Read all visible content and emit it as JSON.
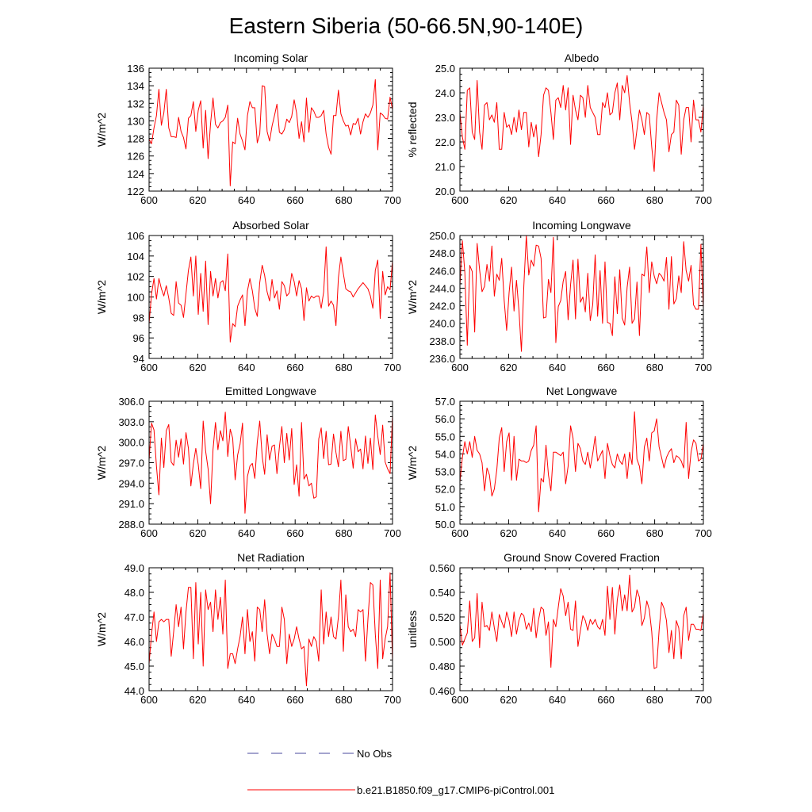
{
  "figure": {
    "title": "Eastern Siberia (50-66.5N,90-140E)",
    "legend": [
      {
        "label": "No Obs",
        "color": "#4a4a9c",
        "dash": true
      },
      {
        "label": "b.e21.B1850.f09_g17.CMIP6-piControl.001",
        "color": "#ff0000",
        "dash": false
      }
    ]
  },
  "colors": {
    "series": "#ff0000",
    "no_obs": "#4a4a9c",
    "axis": "#000000"
  },
  "chart_data": [
    {
      "type": "line",
      "title": "Incoming Solar",
      "ylabel": "W/m^2",
      "xlim": [
        600,
        700
      ],
      "ylim": [
        122,
        136
      ],
      "xticks": [
        "600",
        "620",
        "640",
        "660",
        "680",
        "700"
      ],
      "yticks": [
        "122",
        "124",
        "126",
        "128",
        "130",
        "132",
        "134",
        "136"
      ],
      "series": [
        {
          "values": [
            127.9,
            127.4,
            129.2,
            130.6,
            133.6,
            129.5,
            130.9,
            133.6,
            129.2,
            128.2,
            128.2,
            128.1,
            130.4,
            128.8,
            128.1,
            126.8,
            130.3,
            130.6,
            132.2,
            128.8,
            131.2,
            132.3,
            126.9,
            131.2,
            125.7,
            129.7,
            132.6,
            129.6,
            129.2,
            129.8,
            130.0,
            130.4,
            131.8,
            122.6,
            127.6,
            127.4,
            130.3,
            128.5,
            127.7,
            126.7,
            130.6,
            132.2,
            131.5,
            131.5,
            127.5,
            128.5,
            134.0,
            133.9,
            128.8,
            127.7,
            129.4,
            130.6,
            131.9,
            128.7,
            128.5,
            129.0,
            130.2,
            129.8,
            130.5,
            132.4,
            130.9,
            128.0,
            129.9,
            127.6,
            132.6,
            128.7,
            131.5,
            131.1,
            130.4,
            130.4,
            130.6,
            131.2,
            128.5,
            127.0,
            126.2,
            130.6,
            130.6,
            133.5,
            130.8,
            130.0,
            129.4,
            129.5,
            128.4,
            129.7,
            129.6,
            130.3,
            128.5,
            129.9,
            130.8,
            130.4,
            130.9,
            131.8,
            134.7,
            126.7,
            130.9,
            130.7,
            130.3,
            130.2,
            132.7,
            131.3
          ]
        }
      ]
    },
    {
      "type": "line",
      "title": "Albedo",
      "ylabel": "% reflected",
      "xlim": [
        600,
        700
      ],
      "ylim": [
        20,
        25
      ],
      "xticks": [
        "600",
        "620",
        "640",
        "660",
        "680",
        "700"
      ],
      "yticks": [
        "20.0",
        "21.0",
        "22.0",
        "23.0",
        "24.0",
        "25.0"
      ],
      "series": [
        {
          "values": [
            23.2,
            22.2,
            21.7,
            24.1,
            24.2,
            22.4,
            22.1,
            24.5,
            22.4,
            21.7,
            23.5,
            23.6,
            22.9,
            23.1,
            22.8,
            23.6,
            21.7,
            21.7,
            23.2,
            22.6,
            22.7,
            22.3,
            23.0,
            22.4,
            23.3,
            22.5,
            23.2,
            23.2,
            21.8,
            22.8,
            22.2,
            22.7,
            21.4,
            22.3,
            23.9,
            24.2,
            24.1,
            23.2,
            22.1,
            23.7,
            23.8,
            23.4,
            24.3,
            23.3,
            24.2,
            21.9,
            23.9,
            23.3,
            22.9,
            23.9,
            23.8,
            23.0,
            24.3,
            23.4,
            23.2,
            23.0,
            22.3,
            22.3,
            23.6,
            23.4,
            24.0,
            23.1,
            23.2,
            24.0,
            24.4,
            22.9,
            24.3,
            24.0,
            24.7,
            23.6,
            22.8,
            21.7,
            22.5,
            23.3,
            22.9,
            22.3,
            23.2,
            23.1,
            21.8,
            20.8,
            22.9,
            24.0,
            23.6,
            23.2,
            22.9,
            21.6,
            22.3,
            22.4,
            23.7,
            23.5,
            21.5,
            22.9,
            23.4,
            23.4,
            22.0,
            23.7,
            22.9,
            22.9,
            22.4,
            23.5
          ]
        }
      ]
    },
    {
      "type": "line",
      "title": "Absorbed Solar",
      "ylabel": "W/m^2",
      "xlim": [
        600,
        700
      ],
      "ylim": [
        94,
        106
      ],
      "xticks": [
        "600",
        "620",
        "640",
        "660",
        "680",
        "700"
      ],
      "yticks": [
        "94",
        "96",
        "98",
        "100",
        "102",
        "104",
        "106"
      ],
      "series": [
        {
          "values": [
            97.4,
            100.3,
            101.8,
            99.8,
            101.8,
            100.8,
            100.1,
            101.1,
            99.9,
            98.4,
            98.2,
            101.5,
            99.4,
            99.2,
            98.0,
            100.3,
            102.6,
            103.9,
            100.1,
            104.0,
            98.3,
            102.3,
            98.6,
            103.5,
            97.3,
            102.5,
            100.1,
            101.8,
            99.9,
            101.4,
            101.6,
            100.6,
            104.2,
            95.6,
            97.4,
            97.1,
            99.1,
            99.7,
            100.2,
            97.2,
            100.6,
            101.8,
            100.6,
            98.9,
            98.1,
            101.4,
            103.1,
            102.1,
            100.5,
            99.6,
            101.7,
            99.9,
            100.6,
            98.8,
            101.5,
            101.1,
            100.1,
            100.4,
            102.3,
            101.5,
            100.1,
            101.6,
            100.8,
            97.7,
            100.9,
            99.6,
            100.1,
            99.9,
            100.1,
            100.1,
            98.9,
            100.5,
            104.9,
            99.1,
            99.6,
            99.2,
            97.2,
            101.9,
            103.9,
            102.3,
            100.8,
            100.6,
            100.5,
            100.0,
            100.4,
            100.8,
            101.1,
            101.4,
            101.1,
            100.8,
            100.1,
            98.9,
            102.6,
            103.6,
            97.9,
            102.5,
            100.2,
            101.0,
            100.7,
            103.5
          ]
        }
      ]
    },
    {
      "type": "line",
      "title": "Incoming Longwave",
      "ylabel": "W/m^2",
      "xlim": [
        600,
        700
      ],
      "ylim": [
        236,
        250
      ],
      "xticks": [
        "600",
        "620",
        "640",
        "660",
        "680",
        "700"
      ],
      "yticks": [
        "236.0",
        "238.0",
        "240.0",
        "242.0",
        "244.0",
        "246.0",
        "248.0",
        "250.0"
      ],
      "series": [
        {
          "values": [
            244.3,
            249.4,
            245.8,
            237.5,
            246.6,
            245.9,
            239.0,
            249.1,
            246.1,
            243.6,
            244.2,
            246.7,
            244.8,
            248.8,
            243.1,
            245.6,
            244.9,
            247.4,
            242.6,
            239.2,
            243.5,
            246.4,
            241.4,
            244.9,
            241.5,
            236.8,
            244.3,
            250.0,
            245.5,
            247.2,
            246.5,
            248.9,
            248.8,
            247.4,
            240.6,
            240.7,
            245.0,
            243.5,
            249.8,
            237.8,
            241.9,
            242.6,
            244.8,
            245.9,
            240.4,
            244.4,
            247.2,
            240.5,
            247.3,
            242.4,
            243.0,
            241.3,
            245.7,
            240.3,
            242.1,
            247.8,
            240.8,
            246.0,
            240.0,
            247.0,
            240.1,
            240.0,
            238.6,
            245.3,
            241.1,
            246.1,
            240.6,
            239.8,
            244.1,
            246.4,
            240.0,
            240.5,
            244.7,
            238.6,
            245.6,
            245.4,
            248.7,
            243.5,
            247.0,
            245.4,
            244.5,
            245.7,
            245.4,
            244.8,
            247.5,
            241.6,
            247.6,
            242.2,
            242.8,
            245.4,
            243.5,
            249.3,
            246.0,
            244.8,
            246.6,
            242.1,
            241.6,
            241.6,
            249.0,
            241.7
          ]
        }
      ]
    },
    {
      "type": "line",
      "title": "Emitted Longwave",
      "ylabel": "W/m^2",
      "xlim": [
        600,
        700
      ],
      "ylim": [
        288,
        306
      ],
      "xticks": [
        "600",
        "620",
        "640",
        "660",
        "680",
        "700"
      ],
      "yticks": [
        "288.0",
        "291.0",
        "294.0",
        "297.0",
        "300.0",
        "303.0",
        "306.0"
      ],
      "series": [
        {
          "values": [
            297.4,
            302.8,
            301.8,
            296.5,
            292.3,
            300.6,
            296.3,
            301.7,
            302.6,
            297.1,
            296.6,
            300.3,
            297.8,
            300.5,
            296.8,
            301.4,
            299.1,
            293.6,
            296.8,
            299.1,
            296.7,
            293.2,
            303.1,
            298.7,
            296.1,
            291.0,
            298.9,
            302.9,
            298.9,
            301.7,
            300.2,
            304.4,
            297.9,
            301.9,
            300.6,
            294.5,
            298.1,
            299.7,
            302.8,
            289.6,
            295.0,
            296.5,
            296.9,
            294.7,
            300.0,
            303.1,
            297.9,
            295.3,
            301.1,
            297.4,
            299.4,
            299.6,
            295.4,
            299.3,
            302.3,
            297.0,
            301.3,
            297.4,
            302.0,
            293.8,
            296.7,
            292.1,
            302.9,
            294.6,
            295.3,
            293.6,
            294.0,
            291.8,
            292.0,
            300.5,
            302.1,
            297.6,
            301.6,
            296.7,
            296.8,
            301.2,
            298.5,
            296.4,
            301.6,
            297.3,
            297.5,
            302.3,
            299.4,
            296.2,
            300.5,
            298.6,
            299.0,
            296.1,
            300.9,
            296.9,
            300.6,
            296.0,
            304.0,
            300.9,
            298.2,
            302.5,
            297.1,
            296.1,
            295.4,
            303.9
          ]
        }
      ]
    },
    {
      "type": "line",
      "title": "Net Longwave",
      "ylabel": "W/m^2",
      "xlim": [
        600,
        700
      ],
      "ylim": [
        50,
        57
      ],
      "xticks": [
        "600",
        "620",
        "640",
        "660",
        "680",
        "700"
      ],
      "yticks": [
        "50.0",
        "51.0",
        "52.0",
        "53.0",
        "54.0",
        "55.0",
        "56.0",
        "57.0"
      ],
      "series": [
        {
          "values": [
            52.4,
            53.8,
            54.7,
            54.0,
            54.7,
            53.8,
            55.0,
            54.2,
            54.0,
            53.5,
            51.9,
            53.2,
            52.8,
            51.6,
            52.0,
            53.1,
            54.9,
            55.5,
            53.0,
            54.7,
            55.2,
            52.5,
            55.0,
            52.5,
            53.7,
            53.6,
            53.6,
            53.5,
            53.6,
            54.2,
            54.5,
            55.6,
            50.7,
            52.6,
            52.4,
            54.5,
            52.8,
            51.9,
            54.1,
            54.1,
            54.0,
            53.9,
            54.1,
            52.3,
            53.3,
            55.6,
            54.9,
            53.0,
            54.6,
            54.3,
            53.6,
            53.4,
            54.1,
            53.2,
            54.0,
            55.0,
            53.6,
            53.9,
            54.2,
            52.6,
            54.6,
            53.9,
            53.4,
            53.2,
            54.0,
            53.6,
            53.4,
            54.0,
            52.6,
            54.1,
            53.4,
            56.4,
            53.7,
            53.3,
            52.3,
            54.4,
            54.9,
            53.6,
            55.2,
            55.3,
            56.0,
            54.4,
            53.8,
            53.2,
            53.8,
            54.1,
            54.3,
            53.5,
            53.9,
            53.8,
            53.6,
            53.2,
            55.8,
            52.6,
            54.1,
            54.8,
            54.6,
            53.6,
            53.7,
            54.6
          ]
        }
      ]
    },
    {
      "type": "line",
      "title": "Net Radiation",
      "ylabel": "W/m^2",
      "xlim": [
        600,
        700
      ],
      "ylim": [
        44,
        49
      ],
      "xticks": [
        "600",
        "620",
        "640",
        "660",
        "680",
        "700"
      ],
      "yticks": [
        "44.0",
        "45.0",
        "46.0",
        "47.0",
        "48.0",
        "49.0"
      ],
      "series": [
        {
          "values": [
            45.1,
            46.3,
            47.2,
            46.0,
            46.8,
            46.9,
            46.8,
            46.9,
            46.9,
            45.4,
            46.4,
            47.5,
            46.6,
            47.4,
            45.7,
            47.2,
            48.2,
            48.2,
            45.3,
            48.4,
            45.9,
            48.0,
            45.0,
            48.1,
            47.3,
            47.6,
            46.4,
            48.1,
            46.9,
            47.8,
            46.3,
            48.5,
            44.9,
            45.5,
            45.5,
            45.1,
            45.7,
            46.2,
            47.0,
            45.5,
            47.3,
            46.0,
            46.4,
            45.2,
            47.4,
            47.3,
            46.4,
            47.7,
            46.3,
            45.5,
            46.3,
            46.1,
            45.8,
            45.8,
            47.4,
            46.9,
            45.1,
            46.3,
            45.8,
            46.1,
            46.6,
            46.1,
            45.7,
            45.8,
            44.2,
            46.1,
            45.8,
            46.2,
            46.0,
            45.2,
            48.1,
            45.9,
            47.2,
            46.2,
            47.0,
            46.2,
            46.1,
            47.0,
            48.5,
            45.6,
            47.9,
            46.6,
            46.4,
            46.5,
            46.2,
            47.3,
            47.2,
            47.3,
            45.2,
            46.9,
            48.4,
            48.3,
            46.3,
            44.9,
            48.5,
            45.3,
            46.1,
            46.6,
            48.8,
            45.2
          ]
        }
      ]
    },
    {
      "type": "line",
      "title": "Ground Snow Covered Fraction",
      "ylabel": "unitless",
      "xlim": [
        600,
        700
      ],
      "ylim": [
        0.46,
        0.56
      ],
      "xticks": [
        "600",
        "620",
        "640",
        "660",
        "680",
        "700"
      ],
      "yticks": [
        "0.460",
        "0.480",
        "0.500",
        "0.520",
        "0.540",
        "0.560"
      ],
      "series": [
        {
          "values": [
            0.514,
            0.497,
            0.502,
            0.507,
            0.533,
            0.5,
            0.503,
            0.539,
            0.495,
            0.532,
            0.512,
            0.513,
            0.509,
            0.524,
            0.511,
            0.5,
            0.522,
            0.516,
            0.511,
            0.524,
            0.517,
            0.504,
            0.524,
            0.506,
            0.517,
            0.523,
            0.521,
            0.51,
            0.515,
            0.508,
            0.527,
            0.503,
            0.518,
            0.528,
            0.526,
            0.505,
            0.516,
            0.479,
            0.518,
            0.512,
            0.528,
            0.543,
            0.537,
            0.521,
            0.532,
            0.51,
            0.509,
            0.533,
            0.496,
            0.509,
            0.521,
            0.517,
            0.509,
            0.518,
            0.514,
            0.518,
            0.512,
            0.51,
            0.518,
            0.505,
            0.545,
            0.518,
            0.544,
            0.506,
            0.534,
            0.546,
            0.525,
            0.538,
            0.525,
            0.554,
            0.524,
            0.528,
            0.542,
            0.536,
            0.513,
            0.519,
            0.533,
            0.526,
            0.508,
            0.478,
            0.479,
            0.509,
            0.532,
            0.527,
            0.517,
            0.491,
            0.509,
            0.486,
            0.517,
            0.511,
            0.486,
            0.521,
            0.528,
            0.501,
            0.514,
            0.514,
            0.51,
            0.51,
            0.509,
            0.523
          ]
        }
      ]
    }
  ]
}
